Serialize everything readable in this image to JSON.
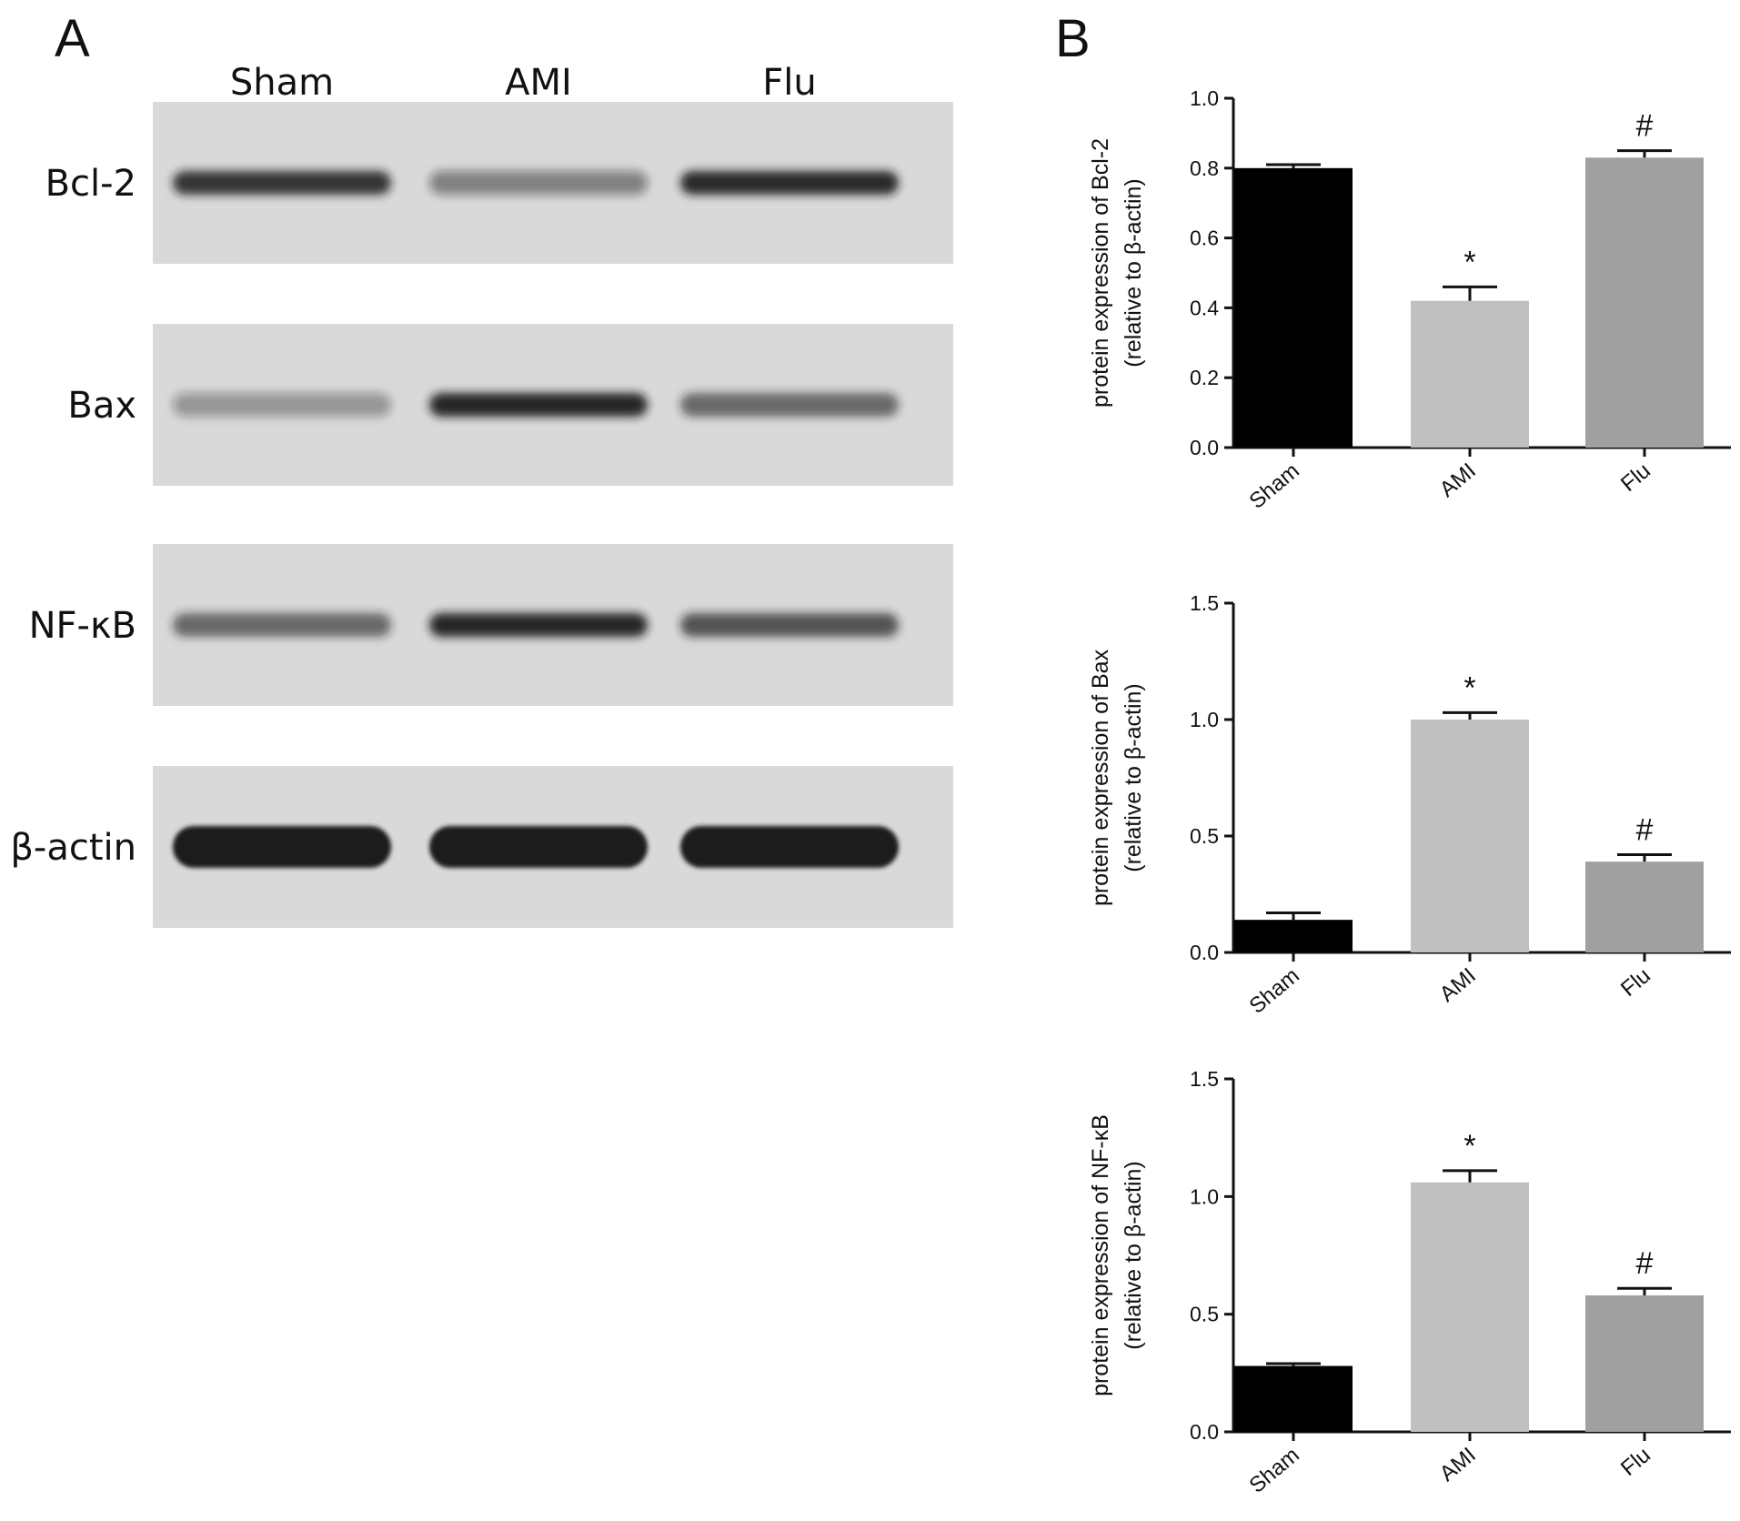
{
  "panel_labels": {
    "a": "A",
    "b": "B"
  },
  "blot": {
    "lanes": [
      "Sham",
      "AMI",
      "Flu"
    ],
    "proteins": [
      "Bcl-2",
      "Bax",
      "NF-κB",
      "β-actin"
    ],
    "band_intensity": [
      [
        0.85,
        0.45,
        0.9
      ],
      [
        0.35,
        0.92,
        0.6
      ],
      [
        0.6,
        0.92,
        0.7
      ],
      [
        1.0,
        1.0,
        1.0
      ]
    ],
    "colors": {
      "membrane": "#d9d9d9",
      "band": "#1a1a1a"
    }
  },
  "chart_data": [
    {
      "type": "bar",
      "categories": [
        "Sham",
        "AMI",
        "Flu"
      ],
      "values": [
        0.8,
        0.42,
        0.83
      ],
      "errors": [
        0.01,
        0.04,
        0.02
      ],
      "annotations": [
        "",
        "*",
        "#"
      ],
      "ylabel_line1": "protein expression of Bcl-2",
      "ylabel_line2": "(relative to β-actin)",
      "ylim": [
        0,
        1.0
      ],
      "yticks": [
        0.0,
        0.2,
        0.4,
        0.6,
        0.8,
        1.0
      ],
      "ytick_labels": [
        "0.0",
        "0.2",
        "0.4",
        "0.6",
        "0.8",
        "1.0"
      ],
      "colors": [
        "#000000",
        "#c0c0c0",
        "#a0a0a0"
      ]
    },
    {
      "type": "bar",
      "categories": [
        "Sham",
        "AMI",
        "Flu"
      ],
      "values": [
        0.14,
        1.0,
        0.39
      ],
      "errors": [
        0.03,
        0.03,
        0.03
      ],
      "annotations": [
        "",
        "*",
        "#"
      ],
      "ylabel_line1": "protein expression of Bax",
      "ylabel_line2": "(relative to β-actin)",
      "ylim": [
        0,
        1.5
      ],
      "yticks": [
        0.0,
        0.5,
        1.0,
        1.5
      ],
      "ytick_labels": [
        "0.0",
        "0.5",
        "1.0",
        "1.5"
      ],
      "colors": [
        "#000000",
        "#c0c0c0",
        "#a0a0a0"
      ]
    },
    {
      "type": "bar",
      "categories": [
        "Sham",
        "AMI",
        "Flu"
      ],
      "values": [
        0.28,
        1.06,
        0.58
      ],
      "errors": [
        0.01,
        0.05,
        0.03
      ],
      "annotations": [
        "",
        "*",
        "#"
      ],
      "ylabel_line1": "protein expression of NF-κB",
      "ylabel_line2": "(relative to β-actin)",
      "ylim": [
        0,
        1.5
      ],
      "yticks": [
        0.0,
        0.5,
        1.0,
        1.5
      ],
      "ytick_labels": [
        "0.0",
        "0.5",
        "1.0",
        "1.5"
      ],
      "colors": [
        "#000000",
        "#c0c0c0",
        "#a0a0a0"
      ]
    }
  ]
}
